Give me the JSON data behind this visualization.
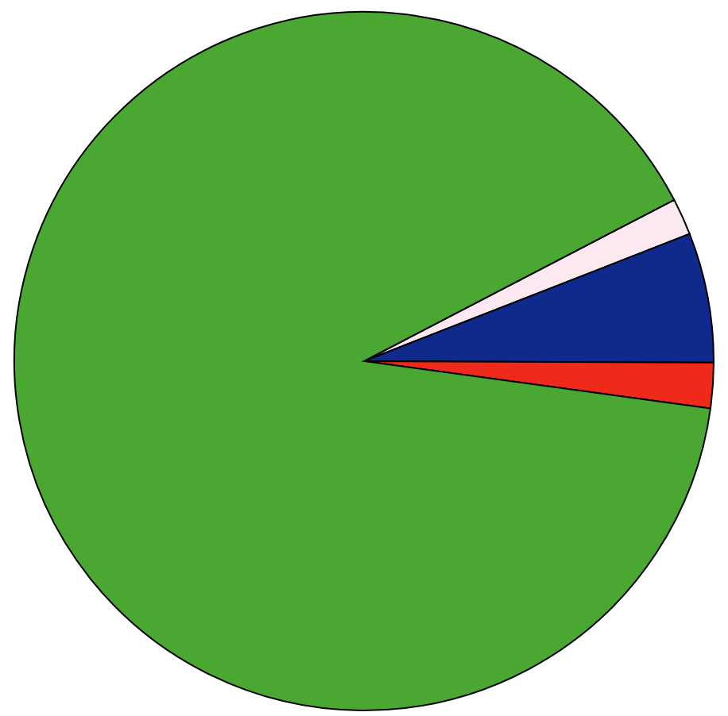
{
  "chart_data": {
    "type": "pie",
    "categories": [
      null,
      null,
      null,
      null
    ],
    "values": [
      1.7,
      6.0,
      2.1,
      90.2
    ],
    "colors": [
      "#fbe8f0",
      "#0f2a8c",
      "#f02a1a",
      "#4aa832"
    ],
    "legend": false
  }
}
